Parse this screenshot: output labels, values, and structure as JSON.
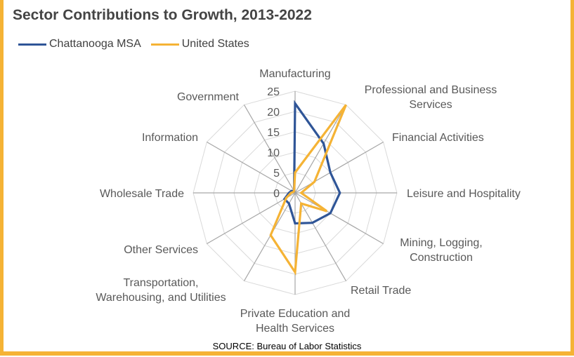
{
  "title": "Sector Contributions to Growth, 2013-2022",
  "source": "SOURCE: Bureau of Labor Statistics",
  "colors": {
    "series1": "#2f5597",
    "series2": "#f5b335",
    "grid": "#d9d9d9",
    "spoke": "#a6a6a6",
    "frame": "#f5b335"
  },
  "chart_data": {
    "type": "radar",
    "title": "Sector Contributions to Growth, 2013-2022",
    "legend_position": "top-left",
    "rmin": 0,
    "rmax": 25,
    "ticks": [
      0,
      5,
      10,
      15,
      20,
      25
    ],
    "tick_labels": [
      "0",
      "5",
      "10",
      "15",
      "20",
      "25"
    ],
    "categories": [
      {
        "lines": [
          "Manufacturing"
        ]
      },
      {
        "lines": [
          "Professional and Business",
          "Services"
        ]
      },
      {
        "lines": [
          "Financial Activities"
        ]
      },
      {
        "lines": [
          "Leisure and Hospitality"
        ]
      },
      {
        "lines": [
          "Mining, Logging,",
          "Construction"
        ]
      },
      {
        "lines": [
          "Retail Trade"
        ]
      },
      {
        "lines": [
          "Private Education and",
          "Health Services"
        ]
      },
      {
        "lines": [
          "Transportation,",
          "Warehousing, and Utilities"
        ]
      },
      {
        "lines": [
          "Other Services"
        ]
      },
      {
        "lines": [
          "Wholesale Trade"
        ]
      },
      {
        "lines": [
          "Information"
        ]
      },
      {
        "lines": [
          "Government"
        ]
      }
    ],
    "series": [
      {
        "name": "Chattanooga MSA",
        "color": "#2f5597",
        "values": [
          22,
          14,
          10,
          11,
          10,
          8.5,
          7.5,
          3,
          3,
          1.5,
          1,
          0.5
        ]
      },
      {
        "name": "United States",
        "color": "#f5b335",
        "values": [
          5,
          25,
          5.5,
          1.5,
          9,
          3,
          19.5,
          12,
          2.5,
          1,
          0.5,
          0.5
        ]
      }
    ]
  }
}
